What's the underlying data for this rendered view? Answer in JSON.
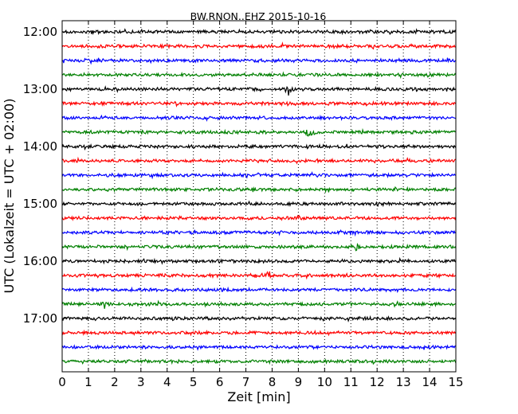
{
  "chart_data": {
    "type": "line",
    "title": "BW.RNON..EHZ 2015-10-16",
    "xlabel": "Zeit  [min]",
    "ylabel": "UTC (Lokalzeit = UTC + 02:00)",
    "xlim": [
      0,
      15
    ],
    "x_ticks": [
      "0",
      "1",
      "2",
      "3",
      "4",
      "5",
      "6",
      "7",
      "8",
      "9",
      "10",
      "11",
      "12",
      "13",
      "14",
      "15"
    ],
    "y_ticks": [
      "12:00",
      "13:00",
      "14:00",
      "15:00",
      "16:00",
      "17:00"
    ],
    "grid": "vertical-dotted",
    "trace_interval_min": 15,
    "trace_colors": [
      "#000000",
      "#ff0000",
      "#0000ff",
      "#008000"
    ],
    "series": [
      {
        "start": "12:00",
        "color": "#000000"
      },
      {
        "start": "12:15",
        "color": "#ff0000"
      },
      {
        "start": "12:30",
        "color": "#0000ff"
      },
      {
        "start": "12:45",
        "color": "#008000"
      },
      {
        "start": "13:00",
        "color": "#000000",
        "events": [
          {
            "x": 8.6,
            "amp": 1.0
          }
        ]
      },
      {
        "start": "13:15",
        "color": "#ff0000"
      },
      {
        "start": "13:30",
        "color": "#0000ff"
      },
      {
        "start": "13:45",
        "color": "#008000",
        "events": [
          {
            "x": 9.45,
            "amp": 1.4
          }
        ]
      },
      {
        "start": "14:00",
        "color": "#000000"
      },
      {
        "start": "14:15",
        "color": "#ff0000"
      },
      {
        "start": "14:30",
        "color": "#0000ff"
      },
      {
        "start": "14:45",
        "color": "#008000"
      },
      {
        "start": "15:00",
        "color": "#000000"
      },
      {
        "start": "15:15",
        "color": "#ff0000"
      },
      {
        "start": "15:30",
        "color": "#0000ff"
      },
      {
        "start": "15:45",
        "color": "#008000",
        "events": [
          {
            "x": 11.2,
            "amp": 0.5
          }
        ]
      },
      {
        "start": "16:00",
        "color": "#000000"
      },
      {
        "start": "16:15",
        "color": "#ff0000",
        "events": [
          {
            "x": 7.9,
            "amp": 0.5
          }
        ]
      },
      {
        "start": "16:30",
        "color": "#0000ff"
      },
      {
        "start": "16:45",
        "color": "#008000",
        "events": [
          {
            "x": 1.6,
            "amp": 0.6
          }
        ]
      },
      {
        "start": "17:00",
        "color": "#000000"
      },
      {
        "start": "17:15",
        "color": "#ff0000"
      },
      {
        "start": "17:30",
        "color": "#0000ff"
      },
      {
        "start": "17:45",
        "color": "#008000"
      }
    ]
  }
}
